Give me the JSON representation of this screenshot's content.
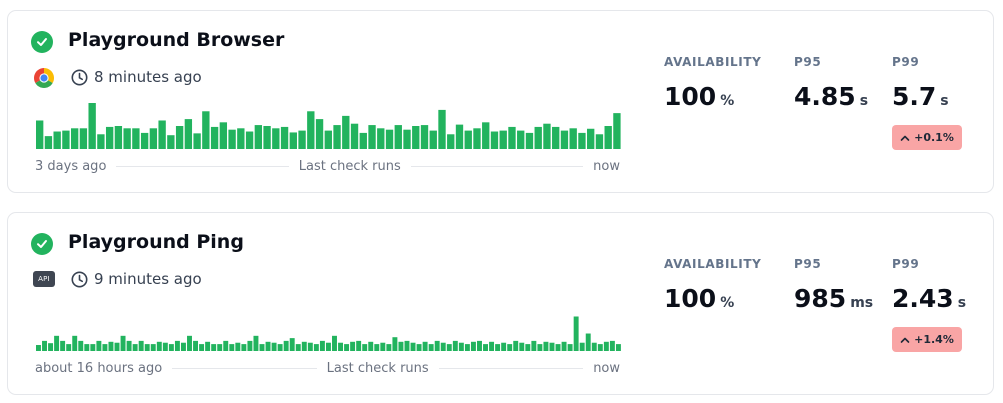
{
  "colors": {
    "success": "#22b35e",
    "bar": "#22b35e",
    "delta_bg": "#f9a5a5",
    "label": "#64748b"
  },
  "cards": [
    {
      "title": "Playground Browser",
      "check_icon": "check-circle-icon",
      "type_icon": "chrome-icon",
      "clock_icon": "clock-icon",
      "last_run": "8 minutes ago",
      "timeline": {
        "start": "3 days ago",
        "middle": "Last check runs",
        "end": "now"
      },
      "availability": {
        "label": "AVAILABILITY",
        "value": "100",
        "unit": "%"
      },
      "p95": {
        "label": "P95",
        "value": "4.85",
        "unit": "s"
      },
      "p99": {
        "label": "P99",
        "value": "5.7",
        "unit": "s"
      },
      "p99_delta": "+0.1%",
      "run_durations": [
        0.62,
        0.28,
        0.38,
        0.4,
        0.45,
        0.45,
        1.0,
        0.32,
        0.48,
        0.5,
        0.45,
        0.45,
        0.35,
        0.45,
        0.62,
        0.3,
        0.5,
        0.65,
        0.34,
        0.82,
        0.48,
        0.58,
        0.42,
        0.45,
        0.38,
        0.52,
        0.5,
        0.45,
        0.48,
        0.36,
        0.4,
        0.82,
        0.65,
        0.4,
        0.52,
        0.72,
        0.55,
        0.35,
        0.52,
        0.45,
        0.42,
        0.52,
        0.42,
        0.5,
        0.52,
        0.4,
        0.85,
        0.32,
        0.53,
        0.4,
        0.45,
        0.58,
        0.38,
        0.4,
        0.48,
        0.4,
        0.35,
        0.48,
        0.55,
        0.48,
        0.4,
        0.45,
        0.35,
        0.44,
        0.32,
        0.5,
        0.78
      ]
    },
    {
      "title": "Playground Ping",
      "check_icon": "check-circle-icon",
      "type_icon": "api-icon",
      "type_badge": "API",
      "clock_icon": "clock-icon",
      "last_run": "9 minutes ago",
      "timeline": {
        "start": "about 16 hours ago",
        "middle": "Last check runs",
        "end": "now"
      },
      "availability": {
        "label": "AVAILABILITY",
        "value": "100",
        "unit": "%"
      },
      "p95": {
        "label": "P95",
        "value": "985",
        "unit": "ms"
      },
      "p99": {
        "label": "P99",
        "value": "2.43",
        "unit": "s"
      },
      "p99_delta": "+1.4%",
      "run_durations": [
        0.13,
        0.22,
        0.17,
        0.33,
        0.22,
        0.15,
        0.33,
        0.22,
        0.15,
        0.15,
        0.22,
        0.15,
        0.2,
        0.18,
        0.33,
        0.22,
        0.15,
        0.22,
        0.15,
        0.15,
        0.2,
        0.18,
        0.15,
        0.22,
        0.18,
        0.33,
        0.22,
        0.15,
        0.2,
        0.15,
        0.15,
        0.22,
        0.15,
        0.18,
        0.15,
        0.22,
        0.33,
        0.15,
        0.2,
        0.18,
        0.15,
        0.22,
        0.28,
        0.15,
        0.2,
        0.18,
        0.15,
        0.22,
        0.18,
        0.33,
        0.18,
        0.15,
        0.2,
        0.22,
        0.15,
        0.2,
        0.15,
        0.18,
        0.15,
        0.3,
        0.2,
        0.22,
        0.18,
        0.15,
        0.2,
        0.15,
        0.22,
        0.18,
        0.15,
        0.22,
        0.18,
        0.15,
        0.2,
        0.22,
        0.15,
        0.2,
        0.15,
        0.18,
        0.15,
        0.22,
        0.18,
        0.15,
        0.22,
        0.15,
        0.2,
        0.18,
        0.15,
        0.2,
        0.15,
        0.75,
        0.18,
        0.38,
        0.18,
        0.15,
        0.2,
        0.22,
        0.15
      ]
    }
  ]
}
